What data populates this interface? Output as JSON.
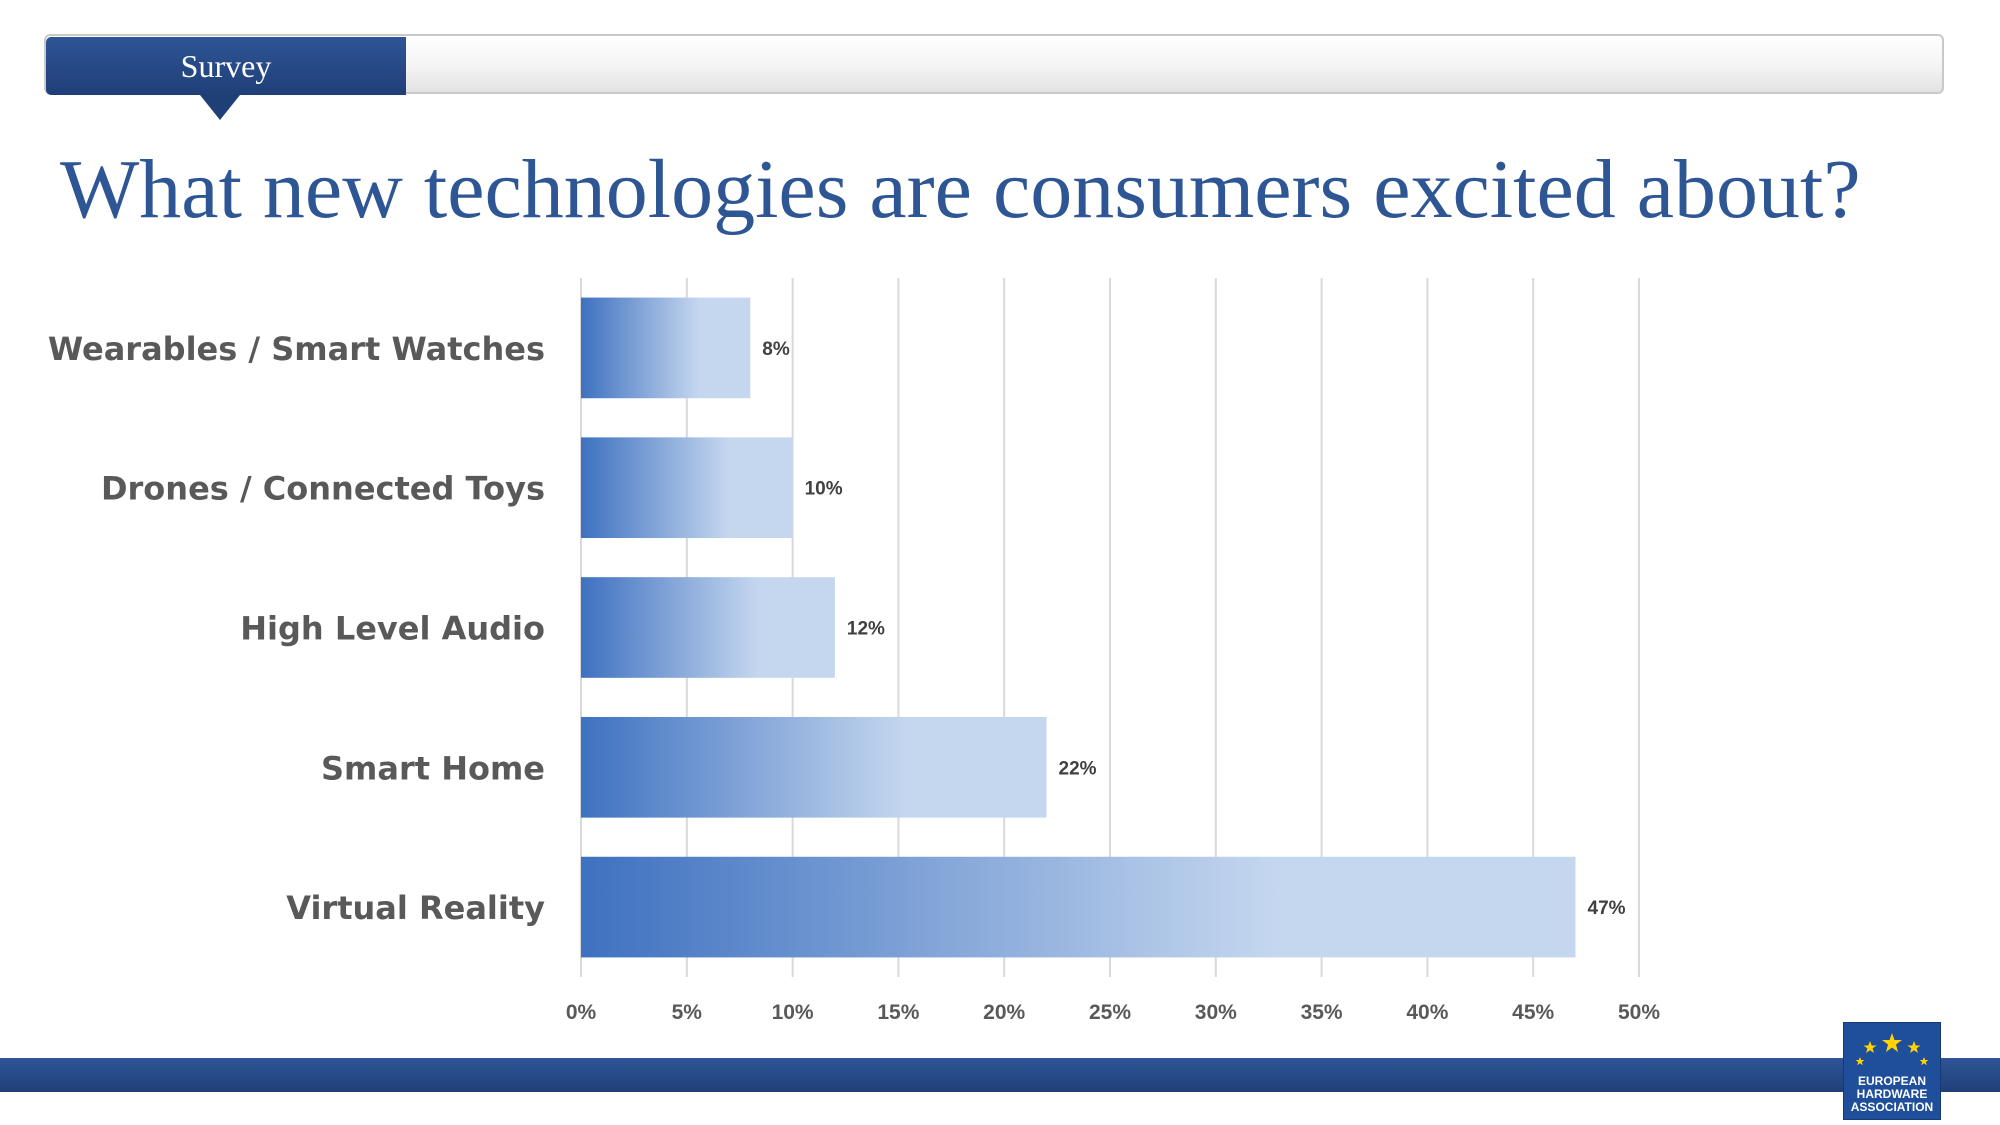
{
  "header": {
    "section_label": "Survey",
    "title": "What new technologies are consumers excited about?"
  },
  "colors": {
    "primary": "#2e5594",
    "bar_gradient_start": "#3e71c0",
    "bar_gradient_end": "#c5d7ef",
    "gridline": "#d9d9d9",
    "category_text": "#595959",
    "value_text": "#404040"
  },
  "chart_data": {
    "type": "bar",
    "orientation": "horizontal",
    "categories": [
      "Wearables / Smart Watches",
      "Drones / Connected Toys",
      "High Level Audio",
      "Smart Home",
      "Virtual Reality"
    ],
    "values": [
      8,
      10,
      12,
      22,
      47
    ],
    "value_labels": [
      "8%",
      "10%",
      "12%",
      "22%",
      "47%"
    ],
    "xlim": [
      0,
      50
    ],
    "x_ticks": [
      0,
      5,
      10,
      15,
      20,
      25,
      30,
      35,
      40,
      45,
      50
    ],
    "x_tick_labels": [
      "0%",
      "5%",
      "10%",
      "15%",
      "20%",
      "25%",
      "30%",
      "35%",
      "40%",
      "45%",
      "50%"
    ],
    "grid": true,
    "legend": "none"
  },
  "logo": {
    "line1": "EUROPEAN",
    "line2": "HARDWARE",
    "line3": "ASSOCIATION"
  }
}
